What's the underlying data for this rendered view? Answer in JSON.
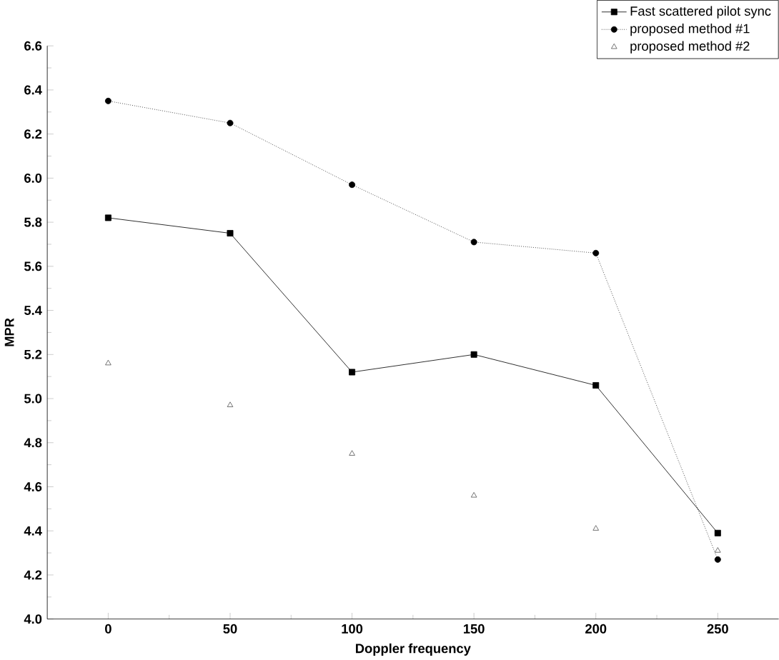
{
  "chart_data": {
    "type": "line",
    "xlabel": "Doppler frequency",
    "ylabel": "MPR",
    "x": [
      0,
      50,
      100,
      150,
      200,
      250
    ],
    "xlim": [
      -25,
      275
    ],
    "xticks": [
      0,
      50,
      100,
      150,
      200,
      250
    ],
    "ylim": [
      4.0,
      6.6
    ],
    "yticks": [
      {
        "value": 4.0,
        "label": "4.0"
      },
      {
        "value": 4.2,
        "label": "4.2"
      },
      {
        "value": 4.4,
        "label": "4.4"
      },
      {
        "value": 4.6,
        "label": "4.6"
      },
      {
        "value": 4.8,
        "label": "4.8"
      },
      {
        "value": 5.0,
        "label": "5.0"
      },
      {
        "value": 5.2,
        "label": "5.2"
      },
      {
        "value": 5.4,
        "label": "5.4"
      },
      {
        "value": 5.6,
        "label": "5.6"
      },
      {
        "value": 5.8,
        "label": "5.8"
      },
      {
        "value": 6.0,
        "label": "6.0"
      },
      {
        "value": 6.2,
        "label": "6.2"
      },
      {
        "value": 6.4,
        "label": "6.4"
      },
      {
        "value": 6.6,
        "label": "6.6"
      }
    ],
    "legend": "top right",
    "grid": false,
    "series": [
      {
        "name": "Fast scattered pilot sync",
        "color": "#000000",
        "marker": "square",
        "line_style": "solid",
        "values": [
          5.82,
          5.75,
          5.12,
          5.2,
          5.06,
          4.39
        ]
      },
      {
        "name": "proposed method #1",
        "color": "#000000",
        "marker": "circle",
        "line_style": "dotted",
        "values": [
          6.35,
          6.25,
          5.97,
          5.71,
          5.66,
          4.27
        ]
      },
      {
        "name": "proposed method #2",
        "type": "scatter",
        "color": "#555555",
        "marker": "triangle",
        "values": [
          5.16,
          4.97,
          4.75,
          4.56,
          4.41,
          4.31
        ]
      }
    ]
  }
}
